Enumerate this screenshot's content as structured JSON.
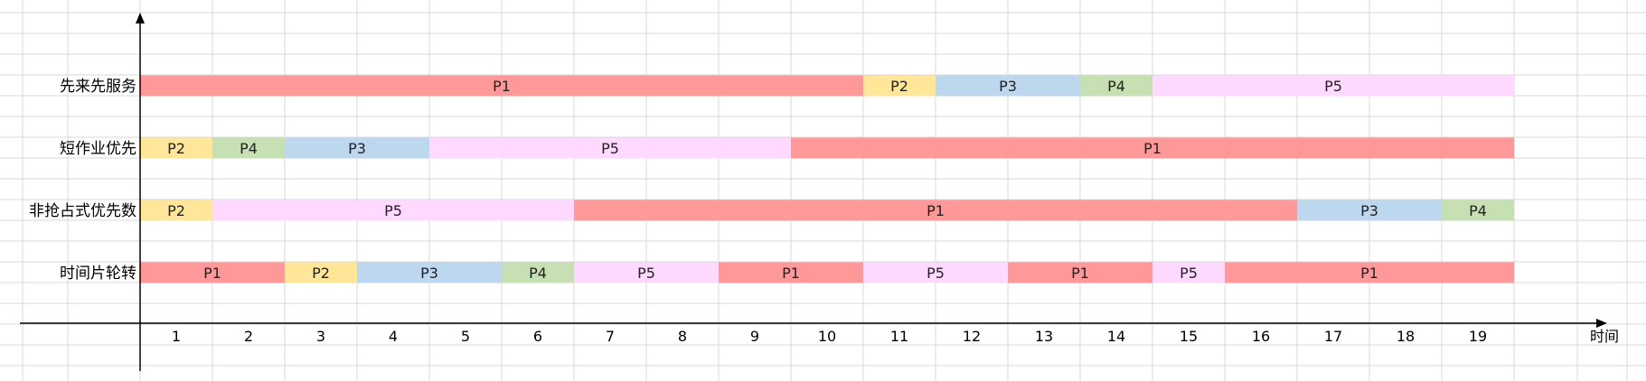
{
  "chart_data": {
    "type": "gantt",
    "xlabel": "时间",
    "xticks": [
      1,
      2,
      3,
      4,
      5,
      6,
      7,
      8,
      9,
      10,
      11,
      12,
      13,
      14,
      15,
      16,
      17,
      18,
      19
    ],
    "xlim": [
      0.5,
      20
    ],
    "grid": true,
    "colors": {
      "P1": "#ff9999",
      "P2": "#ffe699",
      "P3": "#bdd7ee",
      "P4": "#c6e0b4",
      "P5": "#ffd9ff"
    },
    "rows": [
      {
        "label": "先来先服务",
        "segments": [
          {
            "name": "P1",
            "start": 1,
            "end": 10
          },
          {
            "name": "P2",
            "start": 11,
            "end": 11
          },
          {
            "name": "P3",
            "start": 12,
            "end": 13
          },
          {
            "name": "P4",
            "start": 14,
            "end": 14
          },
          {
            "name": "P5",
            "start": 15,
            "end": 19
          }
        ]
      },
      {
        "label": "短作业优先",
        "segments": [
          {
            "name": "P2",
            "start": 1,
            "end": 1
          },
          {
            "name": "P4",
            "start": 2,
            "end": 2
          },
          {
            "name": "P3",
            "start": 3,
            "end": 4
          },
          {
            "name": "P5",
            "start": 5,
            "end": 9
          },
          {
            "name": "P1",
            "start": 10,
            "end": 19
          }
        ]
      },
      {
        "label": "非抢占式优先数",
        "segments": [
          {
            "name": "P2",
            "start": 1,
            "end": 1
          },
          {
            "name": "P5",
            "start": 2,
            "end": 6
          },
          {
            "name": "P1",
            "start": 7,
            "end": 16
          },
          {
            "name": "P3",
            "start": 17,
            "end": 18
          },
          {
            "name": "P4",
            "start": 19,
            "end": 19
          }
        ]
      },
      {
        "label": "时间片轮转",
        "segments": [
          {
            "name": "P1",
            "start": 1,
            "end": 2
          },
          {
            "name": "P2",
            "start": 3,
            "end": 3
          },
          {
            "name": "P3",
            "start": 4,
            "end": 5
          },
          {
            "name": "P4",
            "start": 6,
            "end": 6
          },
          {
            "name": "P5",
            "start": 7,
            "end": 8
          },
          {
            "name": "P1",
            "start": 9,
            "end": 10
          },
          {
            "name": "P5",
            "start": 11,
            "end": 12
          },
          {
            "name": "P1",
            "start": 13,
            "end": 14
          },
          {
            "name": "P5",
            "start": 15,
            "end": 15
          },
          {
            "name": "P1",
            "start": 16,
            "end": 19
          }
        ]
      }
    ]
  }
}
